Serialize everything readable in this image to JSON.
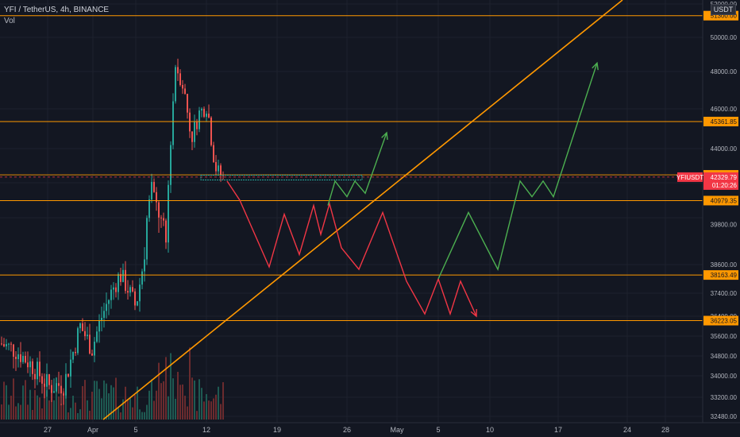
{
  "header": {
    "symbol_line": "YFI / TetherUS, 4h, BINANCE",
    "volume_label": "Vol"
  },
  "price_axis": {
    "currency": "USDT",
    "ticks": [
      "52000.00",
      "50000.00",
      "48000.00",
      "46000.00",
      "44000.00",
      "42000.00",
      "39800.00",
      "38600.00",
      "37400.00",
      "36400.00",
      "35600.00",
      "34800.00",
      "34000.00",
      "33200.00",
      "32480.00"
    ]
  },
  "time_axis": {
    "labels": [
      "27",
      "Apr",
      "5",
      "12",
      "19",
      "26",
      "May",
      "5",
      "10",
      "17",
      "24",
      "28"
    ]
  },
  "chart_data": {
    "type": "candlestick",
    "pair": "YFI / TetherUS",
    "interval": "4h",
    "exchange": "BINANCE",
    "ylim": [
      32000,
      53000
    ],
    "horizontal_levels": [
      {
        "label": "51300.00",
        "value": 51300,
        "color": "#ff9800"
      },
      {
        "label": "45361.85",
        "value": 45361.85,
        "color": "#ff9800"
      },
      {
        "label": "42462.21",
        "value": 42462.21,
        "color": "#ff9800"
      },
      {
        "label": "40979.35",
        "value": 40979.35,
        "color": "#ff9800"
      },
      {
        "label": "38163.49",
        "value": 38163.49,
        "color": "#ff9800"
      },
      {
        "label": "36223.05",
        "value": 36223.05,
        "color": "#ff9800"
      }
    ],
    "current_price": {
      "symbol": "YFIUSDT",
      "price": "42329.79",
      "countdown": "01:20:26",
      "color": "#f23645"
    },
    "trendline": {
      "color": "#ff9800",
      "points": [
        [
          "Apr 1",
          32000
        ],
        [
          "May 22",
          53000
        ]
      ]
    },
    "scenarios": {
      "bearish": {
        "color": "#f23645",
        "path": [
          42100,
          41000,
          38500,
          40200,
          38900,
          40700,
          39500,
          40800,
          39100,
          38400,
          40300,
          37900,
          36500,
          38000,
          36500,
          37900,
          36400
        ]
      },
      "bullish_short": {
        "color": "#4caf50",
        "path": [
          40700,
          42100,
          41200,
          42100,
          41400,
          44800
        ]
      },
      "bullish_long": {
        "color": "#4caf50",
        "path": [
          38000,
          40300,
          38400,
          42100,
          41200,
          42100,
          41200,
          48500
        ]
      }
    },
    "zone": {
      "color": "#26a69a",
      "value": 42300
    }
  }
}
